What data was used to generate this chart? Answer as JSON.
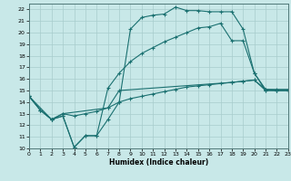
{
  "xlabel": "Humidex (Indice chaleur)",
  "bg_color": "#c8e8e8",
  "grid_color": "#a8cccc",
  "line_color": "#1a7070",
  "xlim": [
    0,
    23
  ],
  "ylim": [
    10,
    22.5
  ],
  "xticks": [
    0,
    1,
    2,
    3,
    4,
    5,
    6,
    7,
    8,
    9,
    10,
    11,
    12,
    13,
    14,
    15,
    16,
    17,
    18,
    19,
    20,
    21,
    22,
    23
  ],
  "yticks": [
    10,
    11,
    12,
    13,
    14,
    15,
    16,
    17,
    18,
    19,
    20,
    21,
    22
  ],
  "line1_x": [
    0,
    1,
    2,
    3,
    4,
    5,
    6,
    7,
    8,
    9,
    10,
    11,
    12,
    13,
    14,
    15,
    16,
    17,
    18,
    19,
    20,
    21,
    22,
    23
  ],
  "line1_y": [
    14.5,
    13.3,
    12.5,
    12.8,
    10.1,
    11.1,
    11.1,
    12.5,
    14.0,
    20.3,
    21.3,
    21.5,
    21.6,
    22.2,
    21.9,
    21.9,
    21.8,
    21.8,
    21.8,
    20.3,
    16.5,
    15.0,
    15.0,
    15.0
  ],
  "line2_x": [
    0,
    1,
    2,
    3,
    4,
    5,
    6,
    7,
    8,
    9,
    10,
    11,
    12,
    13,
    14,
    15,
    16,
    17,
    18,
    19,
    20,
    21,
    22,
    23
  ],
  "line2_y": [
    14.5,
    13.3,
    12.5,
    12.8,
    10.1,
    11.1,
    11.1,
    15.2,
    16.5,
    17.5,
    18.2,
    18.7,
    19.2,
    19.6,
    20.0,
    20.4,
    20.5,
    20.8,
    19.3,
    19.3,
    16.5,
    15.1,
    15.1,
    15.1
  ],
  "line3_x": [
    0,
    1,
    2,
    3,
    4,
    5,
    6,
    7,
    8,
    9,
    10,
    11,
    12,
    13,
    14,
    15,
    16,
    17,
    18,
    19,
    20,
    21,
    22,
    23
  ],
  "line3_y": [
    14.5,
    13.3,
    12.5,
    13.0,
    12.8,
    13.0,
    13.2,
    13.5,
    14.0,
    14.3,
    14.5,
    14.7,
    14.9,
    15.1,
    15.3,
    15.4,
    15.5,
    15.6,
    15.7,
    15.8,
    15.9,
    15.0,
    15.0,
    15.0
  ],
  "line4_x": [
    0,
    2,
    3,
    7,
    8,
    18,
    19,
    20,
    21,
    22,
    23
  ],
  "line4_y": [
    14.5,
    12.5,
    13.0,
    13.5,
    15.0,
    15.7,
    15.8,
    15.9,
    15.1,
    15.0,
    15.0
  ]
}
